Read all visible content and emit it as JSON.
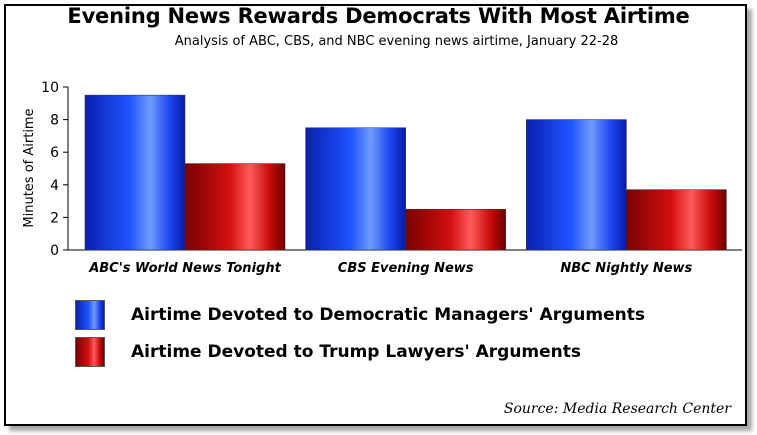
{
  "chart_data": {
    "type": "bar",
    "title": "Evening News Rewards Democrats With Most Airtime",
    "subtitle": "Analysis of ABC, CBS, and NBC evening news airtime, January 22-28",
    "ylabel": "Minutes of Airtime",
    "xlabel": "",
    "ylim": [
      0,
      10
    ],
    "yticks": [
      0,
      2,
      4,
      6,
      8,
      10
    ],
    "grid": false,
    "legend": "bottom",
    "categories": [
      "ABC's World News Tonight",
      "CBS Evening News",
      "NBC Nightly News"
    ],
    "series": [
      {
        "name": "Airtime Devoted to Democratic Managers' Arguments",
        "values": [
          9.5,
          7.5,
          8.0
        ],
        "color": "#1f4fff"
      },
      {
        "name": "Airtime Devoted to Trump Lawyers' Arguments",
        "values": [
          5.3,
          2.5,
          3.7
        ],
        "color": "#d11010"
      }
    ],
    "source": "Source: Media Research Center"
  }
}
